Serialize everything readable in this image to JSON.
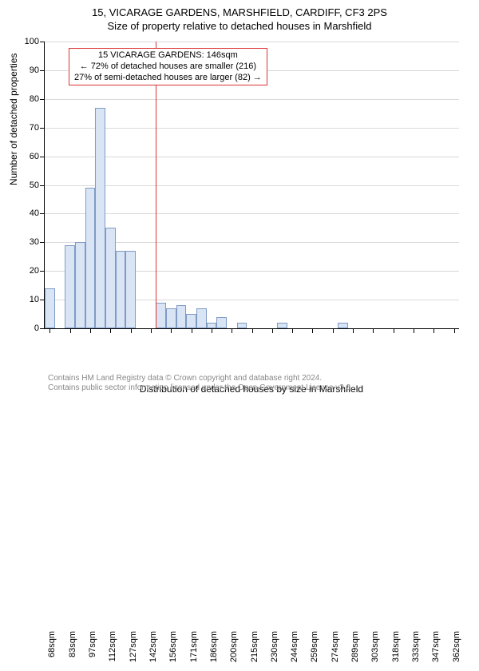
{
  "title_main": "15, VICARAGE GARDENS, MARSHFIELD, CARDIFF, CF3 2PS",
  "title_sub": "Size of property relative to detached houses in Marshfield",
  "y_axis_title": "Number of detached properties",
  "x_axis_title": "Distribution of detached houses by size in Marshfield",
  "footer_line1": "Contains HM Land Registry data © Crown copyright and database right 2024.",
  "footer_line2": "Contains public sector information licensed under the Open Government Licence v3.0.",
  "chart": {
    "type": "histogram",
    "background_color": "#ffffff",
    "grid_color": "#d9d9d9",
    "axis_color": "#000000",
    "bar_fill": "#d9e4f5",
    "bar_border": "#7f9bc4",
    "marker_color": "#dd3333",
    "ylim": [
      0,
      100
    ],
    "ytick_step": 10,
    "x_labels": [
      "68sqm",
      "83sqm",
      "97sqm",
      "112sqm",
      "127sqm",
      "142sqm",
      "156sqm",
      "171sqm",
      "186sqm",
      "200sqm",
      "215sqm",
      "230sqm",
      "244sqm",
      "259sqm",
      "274sqm",
      "289sqm",
      "303sqm",
      "318sqm",
      "333sqm",
      "347sqm",
      "362sqm"
    ],
    "x_label_step": 2,
    "bar_values": [
      14,
      0,
      29,
      30,
      49,
      77,
      35,
      27,
      27,
      0,
      0,
      9,
      7,
      8,
      5,
      7,
      2,
      4,
      0,
      2,
      0,
      0,
      0,
      2,
      0,
      0,
      0,
      0,
      0,
      2,
      0,
      0,
      0,
      0,
      0,
      0,
      0,
      0,
      0,
      0,
      0
    ],
    "bar_count": 41,
    "marker_index": 11,
    "annotation": {
      "line1": "15 VICARAGE GARDENS: 146sqm",
      "line2": "← 72% of detached houses are smaller (216)",
      "line3": "27% of semi-detached houses are larger (82) →",
      "border_color": "#dd3333",
      "bg_color": "#ffffff",
      "fontsize": 11
    }
  }
}
